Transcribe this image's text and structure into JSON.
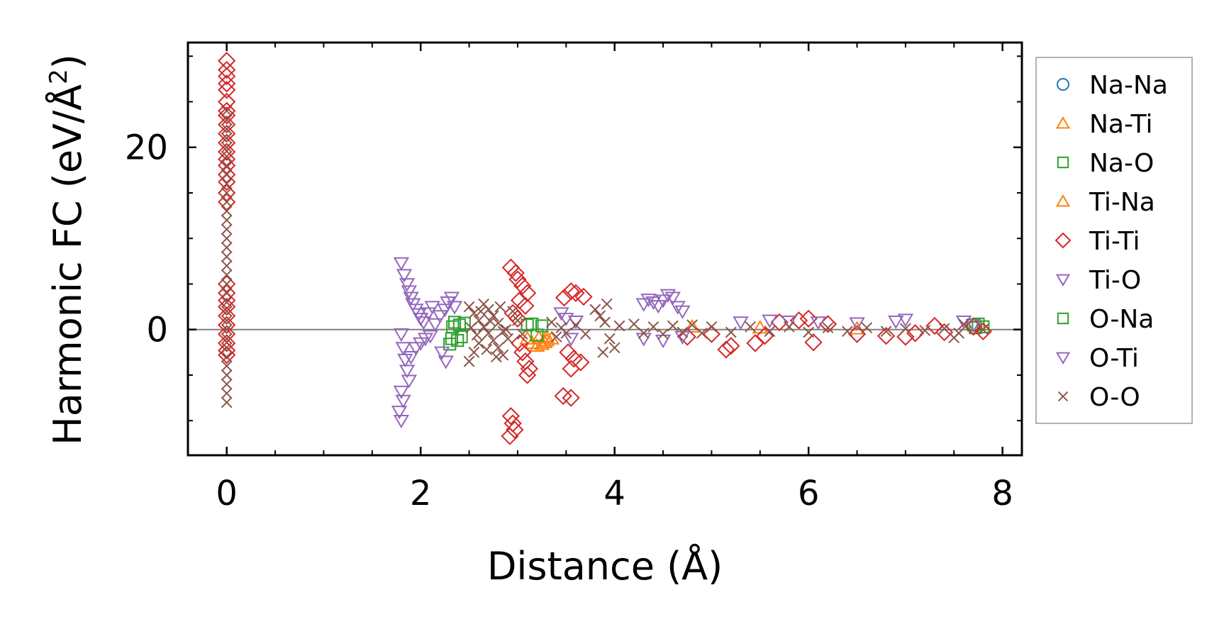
{
  "chart_data": {
    "type": "scatter",
    "title": "",
    "xlabel": "Distance (Å)",
    "ylabel_main": "Harmonic FC (eV/Å",
    "ylabel_sup": "2",
    "ylabel_close": ")",
    "xlim": [
      -0.4,
      8.2
    ],
    "ylim": [
      -13.8,
      31.5
    ],
    "xticks": [
      0,
      2,
      4,
      6,
      8
    ],
    "xtick_labels": [
      "0",
      "2",
      "4",
      "6",
      "8"
    ],
    "xminor_step": 0.5,
    "yticks": [
      0,
      20
    ],
    "ytick_labels": [
      "0",
      "20"
    ],
    "yminor_step": 5,
    "zero_line": true,
    "grid": false,
    "legend_position": "outside-right",
    "series": [
      {
        "name": "Na-Na",
        "marker": "circle",
        "color": "#1f77b4",
        "points": []
      },
      {
        "name": "Na-Ti",
        "marker": "triangle-up",
        "color": "#ff7f0e",
        "points": [
          [
            3.15,
            -1.5
          ],
          [
            3.2,
            -1.8
          ],
          [
            3.25,
            -1.6
          ],
          [
            3.3,
            -1.2
          ],
          [
            3.1,
            -1.0
          ],
          [
            3.3,
            -0.8
          ],
          [
            3.35,
            -1.0
          ],
          [
            3.28,
            -1.4
          ],
          [
            4.8,
            0.3
          ],
          [
            5.5,
            0.2
          ],
          [
            6.5,
            0.1
          ],
          [
            3.22,
            -0.9
          ]
        ]
      },
      {
        "name": "Na-O",
        "marker": "square",
        "color": "#2ca02c",
        "points": [
          [
            2.3,
            -1.6
          ],
          [
            2.32,
            -1.0
          ],
          [
            2.35,
            0.8
          ],
          [
            2.4,
            0.5
          ],
          [
            2.42,
            -0.8
          ],
          [
            2.38,
            -1.2
          ],
          [
            2.33,
            0.3
          ],
          [
            2.45,
            0.7
          ],
          [
            3.15,
            0.6
          ],
          [
            3.2,
            -0.6
          ],
          [
            3.1,
            0.5
          ],
          [
            3.25,
            0.4
          ],
          [
            7.7,
            0.5
          ],
          [
            7.75,
            0.6
          ],
          [
            7.8,
            0.3
          ],
          [
            7.72,
            0.2
          ]
        ]
      },
      {
        "name": "Ti-Na",
        "marker": "triangle-up",
        "color": "#ff7f0e",
        "points": []
      },
      {
        "name": "Ti-Ti",
        "marker": "diamond",
        "color": "#d62728",
        "points": [
          [
            0,
            29.5
          ],
          [
            0,
            28.5
          ],
          [
            0,
            27.8
          ],
          [
            0,
            27
          ],
          [
            0,
            26.3
          ],
          [
            0,
            25
          ],
          [
            0,
            24
          ],
          [
            0,
            23.5
          ],
          [
            0,
            22.5
          ],
          [
            0,
            21.5
          ],
          [
            0,
            20.5
          ],
          [
            0,
            19.5
          ],
          [
            0,
            18.7
          ],
          [
            0,
            18
          ],
          [
            0,
            17
          ],
          [
            0,
            16.2
          ],
          [
            0,
            15
          ],
          [
            0,
            14
          ],
          [
            0,
            5
          ],
          [
            0,
            4
          ],
          [
            0,
            3.2
          ],
          [
            0,
            2.5
          ],
          [
            0,
            1.5
          ],
          [
            0,
            0.5
          ],
          [
            0,
            -0.5
          ],
          [
            0,
            -1.5
          ],
          [
            0,
            -2.3
          ],
          [
            0,
            -2.8
          ],
          [
            2.93,
            6.8
          ],
          [
            2.98,
            6.2
          ],
          [
            3.0,
            5.5
          ],
          [
            3.05,
            4.8
          ],
          [
            3.1,
            4.0
          ],
          [
            3.02,
            3.2
          ],
          [
            3.08,
            2.6
          ],
          [
            2.95,
            1.8
          ],
          [
            3.0,
            1.2
          ],
          [
            3.02,
            -1.5
          ],
          [
            3.05,
            -2.5
          ],
          [
            3.08,
            -3.5
          ],
          [
            3.12,
            -4.3
          ],
          [
            3.1,
            -5.0
          ],
          [
            2.93,
            -9.5
          ],
          [
            2.95,
            -10.3
          ],
          [
            2.97,
            -11
          ],
          [
            2.92,
            -11.7
          ],
          [
            3.48,
            3.5
          ],
          [
            3.55,
            4.2
          ],
          [
            3.6,
            4.0
          ],
          [
            3.68,
            3.6
          ],
          [
            3.52,
            -2.5
          ],
          [
            3.58,
            -3.2
          ],
          [
            3.65,
            -3.6
          ],
          [
            3.55,
            -4.3
          ],
          [
            3.47,
            -7.3
          ],
          [
            3.55,
            -7.5
          ],
          [
            4.75,
            -0.8
          ],
          [
            5.0,
            -0.5
          ],
          [
            5.15,
            -2.2
          ],
          [
            5.2,
            -1.8
          ],
          [
            5.45,
            -1.5
          ],
          [
            5.55,
            -0.7
          ],
          [
            5.7,
            0.8
          ],
          [
            5.9,
            1.0
          ],
          [
            6.0,
            1.2
          ],
          [
            6.05,
            -1.4
          ],
          [
            6.2,
            0.6
          ],
          [
            6.5,
            -0.5
          ],
          [
            6.8,
            -0.7
          ],
          [
            7.0,
            -0.8
          ],
          [
            7.1,
            -0.4
          ],
          [
            7.3,
            0.4
          ],
          [
            7.4,
            -0.3
          ],
          [
            7.7,
            0.3
          ],
          [
            7.8,
            -0.2
          ]
        ]
      },
      {
        "name": "Ti-O",
        "marker": "triangle-down",
        "color": "#9467bd",
        "points": [
          [
            1.8,
            7.3
          ],
          [
            1.83,
            6.0
          ],
          [
            1.86,
            5.0
          ],
          [
            1.88,
            4.2
          ],
          [
            1.9,
            3.5
          ],
          [
            1.92,
            2.8
          ],
          [
            1.95,
            2.2
          ],
          [
            1.98,
            1.7
          ],
          [
            2.0,
            1.2
          ],
          [
            2.03,
            0.8
          ],
          [
            1.8,
            -0.5
          ],
          [
            1.82,
            -2.0
          ],
          [
            1.84,
            -3.3
          ],
          [
            1.86,
            -4.5
          ],
          [
            1.88,
            -5.6
          ],
          [
            1.8,
            -6.8
          ],
          [
            1.82,
            -7.8
          ],
          [
            1.78,
            -9.0
          ],
          [
            1.8,
            -10.0
          ],
          [
            1.9,
            -3.0
          ],
          [
            1.95,
            -2.0
          ],
          [
            2.0,
            -1.5
          ],
          [
            2.05,
            -1.0
          ],
          [
            2.1,
            -0.7
          ],
          [
            2.15,
            0.6
          ],
          [
            2.2,
            1.5
          ],
          [
            2.25,
            2.2
          ],
          [
            2.28,
            3.0
          ],
          [
            2.32,
            3.5
          ],
          [
            2.35,
            2.5
          ],
          [
            2.22,
            -2.5
          ],
          [
            2.26,
            -3.5
          ],
          [
            2.08,
            1.8
          ],
          [
            2.12,
            2.5
          ],
          [
            3.45,
            1.8
          ],
          [
            3.5,
            1.2
          ],
          [
            3.6,
            0.9
          ],
          [
            3.55,
            -1.0
          ],
          [
            4.3,
            2.8
          ],
          [
            4.35,
            3.3
          ],
          [
            4.4,
            3.0
          ],
          [
            4.45,
            2.6
          ],
          [
            4.5,
            3.2
          ],
          [
            4.55,
            3.8
          ],
          [
            4.6,
            3.5
          ],
          [
            4.65,
            2.5
          ],
          [
            4.7,
            2.0
          ],
          [
            4.3,
            -1.0
          ],
          [
            4.5,
            -1.2
          ],
          [
            4.7,
            -0.8
          ],
          [
            5.3,
            0.8
          ],
          [
            5.6,
            1.0
          ],
          [
            5.8,
            0.9
          ],
          [
            6.1,
            0.8
          ],
          [
            6.5,
            0.7
          ],
          [
            6.9,
            0.9
          ],
          [
            7.0,
            1.1
          ],
          [
            7.6,
            0.9
          ],
          [
            7.7,
            0.5
          ]
        ]
      },
      {
        "name": "O-Na",
        "marker": "square",
        "color": "#2ca02c",
        "points": []
      },
      {
        "name": "O-Ti",
        "marker": "triangle-down",
        "color": "#9467bd",
        "points": []
      },
      {
        "name": "O-O",
        "marker": "x",
        "color": "#8c564b",
        "points": [
          [
            0,
            24
          ],
          [
            0,
            23
          ],
          [
            0,
            22
          ],
          [
            0,
            21
          ],
          [
            0,
            20
          ],
          [
            0,
            19
          ],
          [
            0,
            18
          ],
          [
            0,
            17
          ],
          [
            0,
            16
          ],
          [
            0,
            15
          ],
          [
            0,
            14
          ],
          [
            0,
            13
          ],
          [
            0,
            12
          ],
          [
            0,
            11
          ],
          [
            0,
            10
          ],
          [
            0,
            9
          ],
          [
            0,
            8
          ],
          [
            0,
            7
          ],
          [
            0,
            6
          ],
          [
            0,
            5
          ],
          [
            0,
            4
          ],
          [
            0,
            3
          ],
          [
            0,
            2
          ],
          [
            0,
            1
          ],
          [
            0,
            0
          ],
          [
            0,
            -1
          ],
          [
            0,
            -2
          ],
          [
            0,
            -3
          ],
          [
            0,
            -4
          ],
          [
            0,
            -5
          ],
          [
            0,
            -6
          ],
          [
            0,
            -7
          ],
          [
            0,
            -8
          ],
          [
            2.5,
            2.5
          ],
          [
            2.55,
            1.8
          ],
          [
            2.6,
            1.0
          ],
          [
            2.65,
            0.3
          ],
          [
            2.7,
            -0.4
          ],
          [
            2.75,
            -1.2
          ],
          [
            2.8,
            -2.0
          ],
          [
            2.85,
            -2.8
          ],
          [
            2.5,
            -3.5
          ],
          [
            2.55,
            -2.5
          ],
          [
            2.6,
            -1.5
          ],
          [
            2.65,
            2.8
          ],
          [
            2.7,
            2.2
          ],
          [
            2.75,
            1.5
          ],
          [
            2.8,
            0.7
          ],
          [
            2.85,
            -0.2
          ],
          [
            2.9,
            -1.0
          ],
          [
            2.95,
            2.0
          ],
          [
            3.0,
            1.0
          ],
          [
            3.05,
            -0.5
          ],
          [
            2.52,
            0.2
          ],
          [
            2.58,
            -0.6
          ],
          [
            2.62,
            2.0
          ],
          [
            2.68,
            -2.2
          ],
          [
            2.72,
            0.9
          ],
          [
            2.78,
            -3.0
          ],
          [
            2.82,
            2.5
          ],
          [
            2.88,
            0.0
          ],
          [
            3.35,
            0.8
          ],
          [
            3.4,
            -0.8
          ],
          [
            3.45,
            0.2
          ],
          [
            3.5,
            -0.4
          ],
          [
            3.6,
            0.5
          ],
          [
            3.7,
            -0.5
          ],
          [
            3.8,
            2.2
          ],
          [
            3.85,
            1.5
          ],
          [
            3.9,
            0.8
          ],
          [
            3.95,
            -1.0
          ],
          [
            4.0,
            -2.0
          ],
          [
            3.88,
            -2.5
          ],
          [
            3.92,
            2.8
          ],
          [
            4.05,
            0.4
          ],
          [
            4.2,
            0.6
          ],
          [
            4.3,
            -0.4
          ],
          [
            4.4,
            0.3
          ],
          [
            4.5,
            -0.5
          ],
          [
            4.6,
            0.4
          ],
          [
            4.7,
            -0.3
          ],
          [
            4.8,
            0.5
          ],
          [
            4.9,
            -0.4
          ],
          [
            5.0,
            0.3
          ],
          [
            5.2,
            -0.3
          ],
          [
            5.4,
            0.3
          ],
          [
            5.6,
            -0.2
          ],
          [
            5.8,
            0.3
          ],
          [
            6.0,
            -0.3
          ],
          [
            6.2,
            0.2
          ],
          [
            6.4,
            -0.2
          ],
          [
            6.6,
            0.2
          ],
          [
            6.8,
            -0.2
          ],
          [
            7.0,
            0.1
          ],
          [
            7.2,
            -0.1
          ],
          [
            7.4,
            0.1
          ],
          [
            7.5,
            -0.9
          ],
          [
            7.55,
            -0.4
          ],
          [
            7.6,
            0.6
          ],
          [
            7.8,
            0.0
          ]
        ]
      }
    ]
  }
}
